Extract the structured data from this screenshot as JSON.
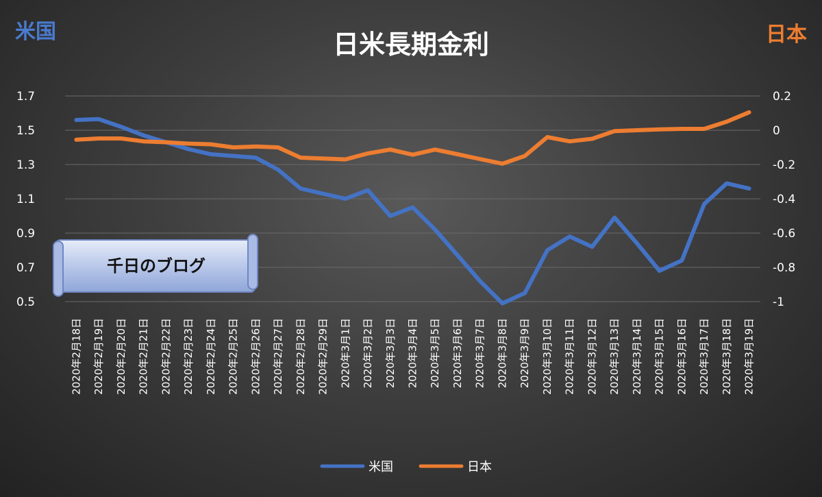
{
  "chart_data": {
    "type": "line",
    "title": "日米長期金利",
    "left_axis_label": "米国",
    "right_axis_label": "日本",
    "categories": [
      "2020年2月18日",
      "2020年2月19日",
      "2020年2月20日",
      "2020年2月21日",
      "2020年2月22日",
      "2020年2月23日",
      "2020年2月24日",
      "2020年2月25日",
      "2020年2月26日",
      "2020年2月27日",
      "2020年2月28日",
      "2020年2月29日",
      "2020年3月1日",
      "2020年3月2日",
      "2020年3月3日",
      "2020年3月4日",
      "2020年3月5日",
      "2020年3月6日",
      "2020年3月7日",
      "2020年3月8日",
      "2020年3月9日",
      "2020年3月10日",
      "2020年3月11日",
      "2020年3月12日",
      "2020年3月13日",
      "2020年3月14日",
      "2020年3月15日",
      "2020年3月16日",
      "2020年3月17日",
      "2020年3月18日",
      "2020年3月19日"
    ],
    "series": [
      {
        "name": "米国",
        "axis": "left",
        "color": "#4472c4",
        "values": [
          1.56,
          1.565,
          1.52,
          1.47,
          1.43,
          1.39,
          1.36,
          1.35,
          1.34,
          1.27,
          1.16,
          1.13,
          1.1,
          1.15,
          1.0,
          1.05,
          0.92,
          0.77,
          0.62,
          0.49,
          0.55,
          0.8,
          0.88,
          0.82,
          0.99,
          0.84,
          0.68,
          0.74,
          1.07,
          1.19,
          1.16
        ]
      },
      {
        "name": "日本",
        "axis": "right",
        "color": "#ed7d31",
        "values": [
          -0.055,
          -0.048,
          -0.048,
          -0.065,
          -0.07,
          -0.078,
          -0.082,
          -0.1,
          -0.095,
          -0.1,
          -0.16,
          -0.165,
          -0.17,
          -0.135,
          -0.113,
          -0.143,
          -0.113,
          -0.14,
          -0.168,
          -0.195,
          -0.15,
          -0.04,
          -0.065,
          -0.05,
          -0.005,
          0.0,
          0.005,
          0.008,
          0.008,
          0.05,
          0.105
        ]
      }
    ],
    "left_axis": {
      "min": 0.5,
      "max": 1.7,
      "ticks": [
        "0.5",
        "0.7",
        "0.9",
        "1.1",
        "1.3",
        "1.5",
        "1.7"
      ]
    },
    "right_axis": {
      "min": -1,
      "max": 0.2,
      "ticks": [
        "-1",
        "-0.8",
        "-0.6",
        "-0.4",
        "-0.2",
        "0",
        "0.2"
      ]
    },
    "grid": true,
    "legend_position": "bottom",
    "legend": [
      "米国",
      "日本"
    ]
  },
  "banner": {
    "text": "千日のブログ"
  }
}
